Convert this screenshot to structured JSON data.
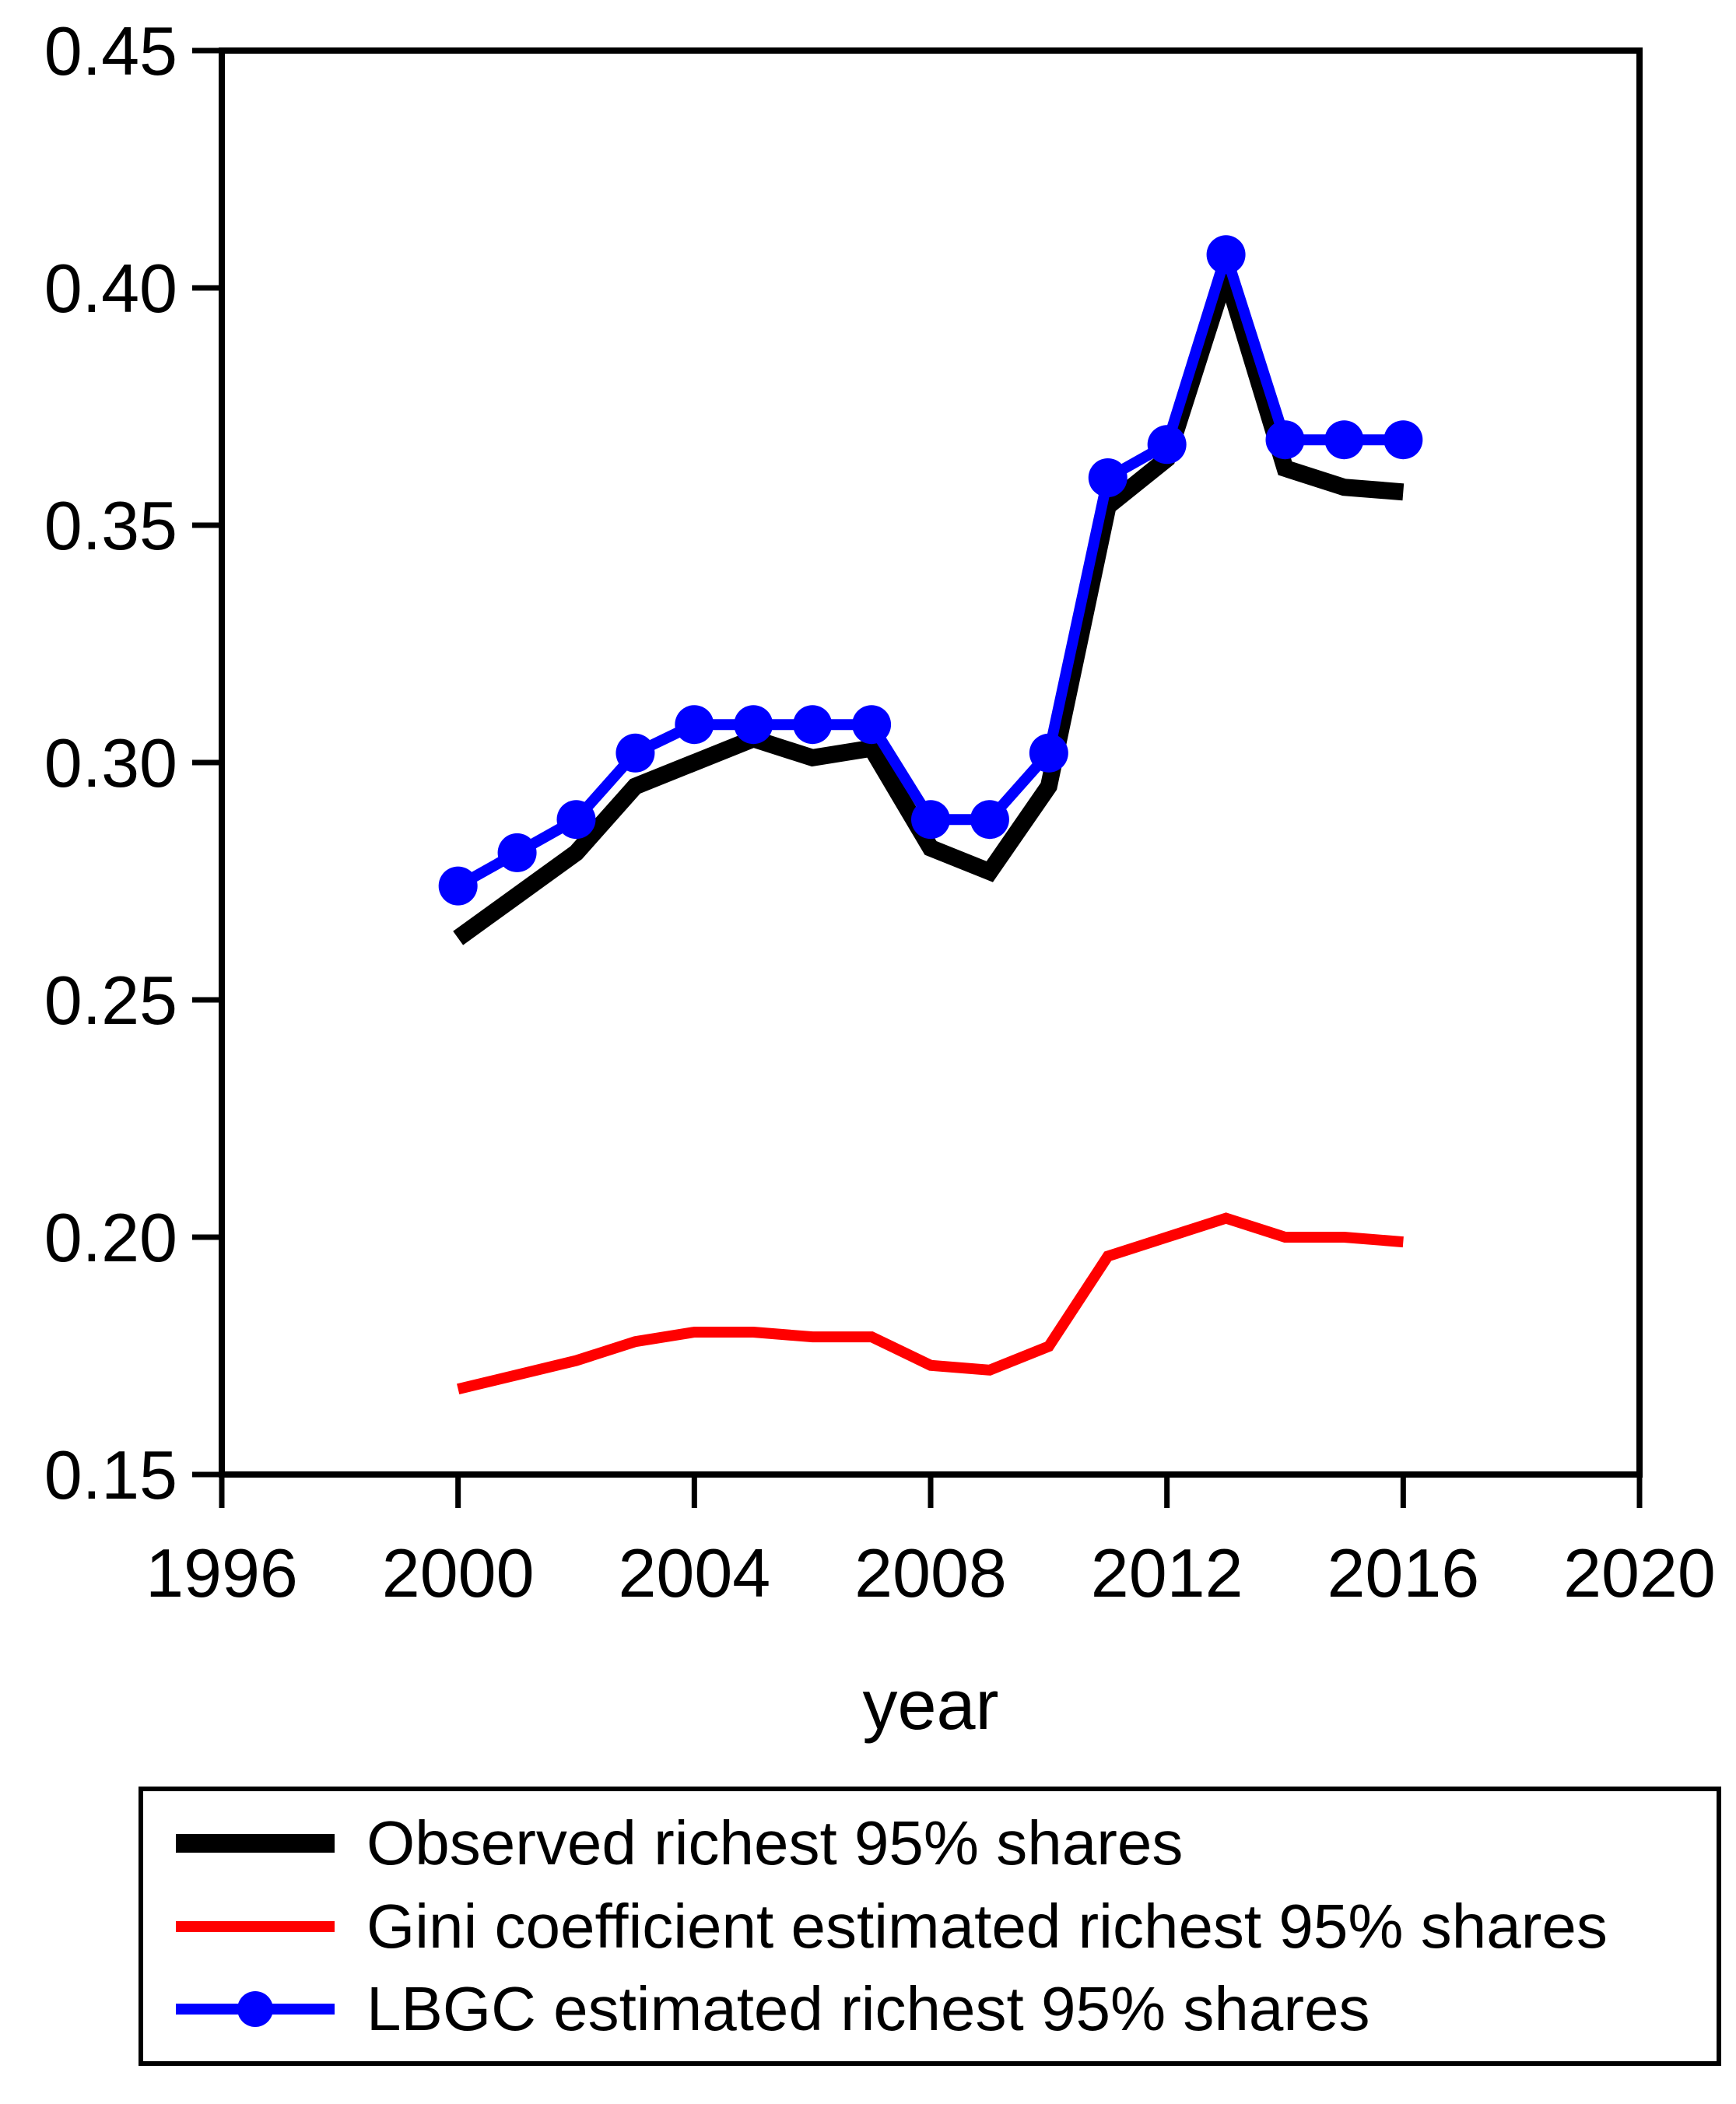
{
  "chart_data": {
    "type": "line",
    "title": "",
    "xlabel": "year",
    "ylabel": "",
    "xlim": [
      1996,
      2020
    ],
    "ylim": [
      0.15,
      0.45
    ],
    "x_ticks": [
      1996,
      2000,
      2004,
      2008,
      2012,
      2016,
      2020
    ],
    "y_ticks": [
      0.15,
      0.2,
      0.25,
      0.3,
      0.35,
      0.4,
      0.45
    ],
    "y_tick_labels": [
      "0.15",
      "0.20",
      "0.25",
      "0.30",
      "0.35",
      "0.40",
      "0.45"
    ],
    "grid": false,
    "legend_position": "bottom",
    "background_color": "#ffffff",
    "axis_color": "#000000",
    "x": [
      2000,
      2001,
      2002,
      2003,
      2004,
      2005,
      2006,
      2007,
      2008,
      2009,
      2010,
      2011,
      2012,
      2013,
      2014,
      2015,
      2016
    ],
    "series": [
      {
        "name": "Observed richest 95% shares",
        "color": "#000000",
        "marker": "none",
        "values": [
          0.263,
          0.272,
          0.281,
          0.295,
          0.3,
          0.305,
          0.301,
          0.303,
          0.282,
          0.277,
          0.295,
          0.354,
          0.364,
          0.403,
          0.362,
          0.358,
          0.357
        ]
      },
      {
        "name": "Gini coefficient estimated richest 95% shares",
        "color": "#ff0000",
        "marker": "none",
        "values": [
          0.168,
          0.171,
          0.174,
          0.178,
          0.18,
          0.18,
          0.179,
          0.179,
          0.173,
          0.172,
          0.177,
          0.196,
          0.2,
          0.204,
          0.2,
          0.2,
          0.199
        ]
      },
      {
        "name": "LBGC estimated richest 95% shares",
        "color": "#0000ff",
        "marker": "circle",
        "values": [
          0.274,
          0.281,
          0.288,
          0.302,
          0.308,
          0.308,
          0.308,
          0.308,
          0.288,
          0.288,
          0.302,
          0.36,
          0.367,
          0.407,
          0.368,
          0.368,
          0.368
        ]
      }
    ]
  }
}
